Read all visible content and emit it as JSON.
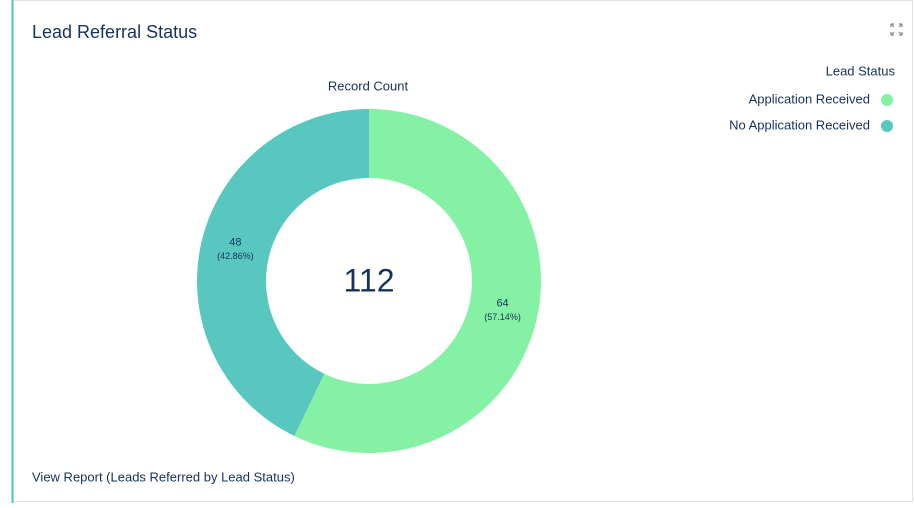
{
  "chart_data": {
    "type": "donut",
    "title": "Lead Referral Status",
    "subtitle": "Record Count",
    "legend_title": "Lead Status",
    "legend_position": "top-right",
    "categories": [
      "Application Received",
      "No Application Received"
    ],
    "values": [
      64,
      48
    ],
    "percent_labels": [
      "(57.14%)",
      "(42.86%)"
    ],
    "colors": [
      "#84f1a4",
      "#58c7c0"
    ],
    "total": 112,
    "link": "View Report (Leads Referred by Lead Status)"
  }
}
